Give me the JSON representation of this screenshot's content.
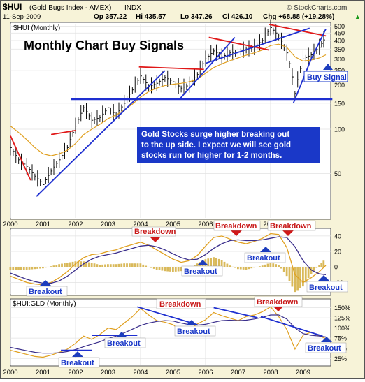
{
  "header": {
    "symbol": "$HUI",
    "name": "(Gold Bugs Index - AMEX)",
    "exchange": "INDX",
    "date": "11-Sep-2009",
    "op": "Op 357.22",
    "hi": "Hi 435.57",
    "lo": "Lo 347.26",
    "cl": "Cl 426.10",
    "chg": "Chg +68.88 (+19.28%)",
    "chg_arrow": "▲",
    "source": "© StockCharts.com"
  },
  "main_panel": {
    "label": "$HUI (Monthly)",
    "headline": "Monthly Chart Buy Signals",
    "callout": [
      "Gold Stocks surge higher breaking out",
      "to the up side. I expect we will see gold",
      "stocks run for higher for 1-2 months."
    ],
    "buy_signal": "Buy Signal"
  },
  "x_axis": {
    "ticks": [
      "2000",
      "2001",
      "2002",
      "2003",
      "2004",
      "2005",
      "2006",
      "2007",
      "2008",
      "2009"
    ]
  },
  "macd_panel": {
    "ticks": [
      "40",
      "20",
      "0",
      "-20"
    ],
    "annotations": [
      {
        "text": "Breakdown",
        "kind": "down"
      },
      {
        "text": "Breakdown",
        "kind": "down"
      },
      {
        "text": "Breakdown",
        "kind": "down"
      },
      {
        "text": "Breakout",
        "kind": "up"
      },
      {
        "text": "Breakout",
        "kind": "up"
      },
      {
        "text": "Breakout",
        "kind": "up"
      },
      {
        "text": "Breakout",
        "kind": "up"
      }
    ]
  },
  "ratio_panel": {
    "label": "$HUI:GLD (Monthly)",
    "ticks": [
      "150%",
      "125%",
      "100%",
      "75%",
      "50%",
      "25%"
    ],
    "annotations": [
      {
        "text": "Breakdown",
        "kind": "down"
      },
      {
        "text": "Breakdown",
        "kind": "down"
      },
      {
        "text": "Breakout",
        "kind": "up"
      },
      {
        "text": "Breakout",
        "kind": "up"
      },
      {
        "text": "Breakout",
        "kind": "up"
      },
      {
        "text": "Breakout",
        "kind": "up"
      }
    ]
  },
  "colors": {
    "frame_bg": "#f7f3d8",
    "panel_bg": "#ffffff",
    "trend_blue": "#1e2fd0",
    "resist_red": "#e01818",
    "ma_orange": "#e0a020",
    "callout_bg": "#1a38c8",
    "marker_blue": "#1d3dbd",
    "marker_red": "#d01818"
  },
  "chart_data": [
    {
      "type": "line",
      "scale": "log",
      "ylim": [
        25,
        520
      ],
      "y_ticks": [
        500,
        450,
        400,
        350,
        300,
        250,
        200,
        150,
        100,
        50
      ],
      "x": [
        2000.0,
        2000.25,
        2000.5,
        2000.75,
        2001.0,
        2001.25,
        2001.5,
        2001.75,
        2002.0,
        2002.25,
        2002.5,
        2002.75,
        2003.0,
        2003.25,
        2003.5,
        2003.75,
        2004.0,
        2004.25,
        2004.5,
        2004.75,
        2005.0,
        2005.25,
        2005.5,
        2005.75,
        2006.0,
        2006.25,
        2006.5,
        2006.75,
        2007.0,
        2007.25,
        2007.5,
        2007.75,
        2008.0,
        2008.25,
        2008.5,
        2008.75,
        2009.0,
        2009.25,
        2009.5,
        2009.7
      ],
      "series": [
        {
          "values": [
            75,
            62,
            56,
            48,
            42,
            52,
            62,
            75,
            105,
            140,
            115,
            120,
            140,
            125,
            150,
            185,
            230,
            195,
            205,
            225,
            210,
            190,
            200,
            235,
            300,
            340,
            310,
            330,
            335,
            350,
            360,
            400,
            490,
            430,
            330,
            175,
            300,
            320,
            360,
            426
          ]
        },
        {
          "values": [
            105,
            95,
            85,
            75,
            68,
            66,
            68,
            72,
            80,
            92,
            100,
            108,
            118,
            125,
            135,
            148,
            165,
            180,
            190,
            198,
            202,
            205,
            210,
            218,
            240,
            262,
            278,
            292,
            305,
            318,
            330,
            345,
            370,
            378,
            360,
            310,
            290,
            295,
            305,
            320
          ]
        }
      ],
      "trendlines": [
        {
          "points": [
            [
              2000.0,
              90
            ],
            [
              2000.62,
              45
            ]
          ]
        },
        {
          "points": [
            [
              2001.25,
              92
            ],
            [
              2002.0,
              98
            ]
          ]
        },
        {
          "points": [
            [
              2003.95,
              265
            ],
            [
              2005.95,
              255
            ]
          ]
        },
        {
          "points": [
            [
              2006.1,
              420
            ],
            [
              2007.95,
              345
            ]
          ]
        },
        {
          "points": [
            [
              2007.95,
              515
            ],
            [
              2009.7,
              430
            ]
          ]
        },
        {
          "points": [
            [
              2000.8,
              35
            ],
            [
              2004.75,
              250
            ]
          ]
        },
        {
          "points": [
            [
              2005.2,
              160
            ],
            [
              2006.9,
              420
            ]
          ]
        },
        {
          "points": [
            [
              2006.0,
              280
            ],
            [
              2009.2,
              485
            ]
          ]
        },
        {
          "points": [
            [
              2008.7,
              150
            ],
            [
              2009.25,
              300
            ]
          ]
        },
        {
          "points": [
            [
              2009.25,
              300
            ],
            [
              2009.7,
              480
            ]
          ]
        },
        {
          "points": [
            [
              2001.85,
              160
            ],
            [
              2009.9,
              160
            ]
          ]
        }
      ]
    },
    {
      "type": "line",
      "ylim": [
        -35,
        48
      ],
      "y_ticks": [
        40,
        20,
        0,
        -20
      ],
      "x": [
        2000.0,
        2000.25,
        2000.5,
        2000.75,
        2001.0,
        2001.25,
        2001.5,
        2001.75,
        2002.0,
        2002.25,
        2002.5,
        2002.75,
        2003.0,
        2003.25,
        2003.5,
        2003.75,
        2004.0,
        2004.25,
        2004.5,
        2004.75,
        2005.0,
        2005.25,
        2005.5,
        2005.75,
        2006.0,
        2006.25,
        2006.5,
        2006.75,
        2007.0,
        2007.25,
        2007.5,
        2007.75,
        2008.0,
        2008.25,
        2008.5,
        2008.75,
        2009.0,
        2009.25,
        2009.5,
        2009.7
      ],
      "series": [
        {
          "values": [
            -12,
            -16,
            -20,
            -22,
            -23,
            -20,
            -14,
            -6,
            4,
            12,
            16,
            17,
            20,
            22,
            26,
            29,
            32,
            28,
            22,
            16,
            10,
            6,
            8,
            15,
            27,
            38,
            40,
            36,
            32,
            30,
            33,
            37,
            43,
            42,
            25,
            -10,
            -20,
            -14,
            -6,
            2
          ]
        },
        {
          "values": [
            -8,
            -12,
            -16,
            -19,
            -21,
            -21,
            -18,
            -12,
            -4,
            4,
            10,
            14,
            16,
            18,
            21,
            24,
            27,
            28,
            26,
            22,
            17,
            12,
            9,
            10,
            16,
            24,
            30,
            34,
            35,
            34,
            34,
            35,
            37,
            39,
            38,
            26,
            8,
            -4,
            -9,
            -10
          ]
        }
      ]
    },
    {
      "type": "line",
      "ylim": [
        10,
        168
      ],
      "y_ticks": [
        150,
        125,
        100,
        75,
        50,
        25
      ],
      "x": [
        2000.0,
        2000.25,
        2000.5,
        2000.75,
        2001.0,
        2001.25,
        2001.5,
        2001.75,
        2002.0,
        2002.25,
        2002.5,
        2002.75,
        2003.0,
        2003.25,
        2003.5,
        2003.75,
        2004.0,
        2004.25,
        2004.5,
        2004.75,
        2005.0,
        2005.25,
        2005.5,
        2005.75,
        2006.0,
        2006.25,
        2006.5,
        2006.75,
        2007.0,
        2007.25,
        2007.5,
        2007.75,
        2008.0,
        2008.25,
        2008.5,
        2008.75,
        2009.0,
        2009.25,
        2009.5,
        2009.7
      ],
      "series": [
        {
          "values": [
            45,
            40,
            35,
            30,
            28,
            33,
            40,
            48,
            62,
            80,
            72,
            84,
            100,
            96,
            112,
            128,
            148,
            132,
            118,
            114,
            108,
            92,
            96,
            110,
            120,
            138,
            130,
            124,
            118,
            128,
            132,
            140,
            152,
            128,
            96,
            48,
            82,
            90,
            80,
            74
          ]
        },
        {
          "values": [
            52,
            48,
            44,
            40,
            38,
            38,
            39,
            42,
            47,
            54,
            60,
            66,
            74,
            80,
            88,
            97,
            106,
            112,
            116,
            118,
            117,
            112,
            108,
            107,
            109,
            114,
            118,
            119,
            118,
            119,
            122,
            126,
            132,
            132,
            122,
            100,
            86,
            82,
            80,
            78
          ]
        }
      ],
      "trendlines": [
        {
          "points": [
            [
              2001.55,
              45
            ],
            [
              2002.5,
              45
            ]
          ]
        },
        {
          "points": [
            [
              2002.5,
              82
            ],
            [
              2003.9,
              82
            ]
          ]
        },
        {
          "points": [
            [
              2003.9,
              152
            ],
            [
              2005.75,
              108
            ]
          ]
        },
        {
          "points": [
            [
              2006.25,
              150
            ],
            [
              2007.6,
              125
            ]
          ]
        },
        {
          "points": [
            [
              2007.7,
              128
            ],
            [
              2009.6,
              80
            ]
          ]
        }
      ]
    }
  ]
}
